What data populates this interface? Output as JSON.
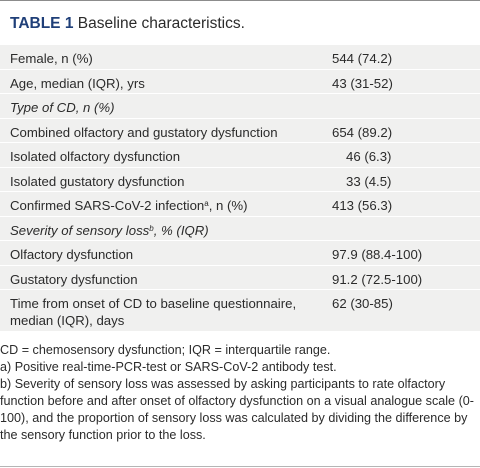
{
  "title": {
    "label": "TABLE 1",
    "text": " Baseline characteristics."
  },
  "rows": [
    {
      "label": "Female, n (%)",
      "value": "544 (74.2)"
    },
    {
      "label": "Age, median (IQR), yrs",
      "value": "43 (31-52)"
    },
    {
      "label": "Type of CD, n (%)",
      "value": ""
    },
    {
      "label": "Combined olfactory and gustatory dysfunction",
      "value": "654 (89.2)"
    },
    {
      "label": "Isolated olfactory dysfunction",
      "value": "46 (6.3)"
    },
    {
      "label": "Isolated gustatory dysfunction",
      "value": "33 (4.5)"
    },
    {
      "label_pre": "Confirmed SARS-CoV-2 infection",
      "label_sup": "a",
      "label_post": ", n (%)",
      "value": "413 (56.3)"
    },
    {
      "label_pre": "Severity of sensory loss",
      "label_sup": "b",
      "label_post": ", % (IQR)",
      "value": ""
    },
    {
      "label": "Olfactory dysfunction",
      "value": "97.9 (88.4-100)"
    },
    {
      "label": "Gustatory dysfunction",
      "value": "91.2 (72.5-100)"
    },
    {
      "label": "Time from onset of CD to baseline questionnaire, median (IQR), days",
      "value": "62 (30-85)"
    }
  ],
  "footnotes": {
    "abbrev": "CD = chemosensory dysfunction; IQR = interquartile range.",
    "a": "a) Positive real-time-PCR-test or SARS-CoV-2 antibody test.",
    "b": "b) Severity of sensory loss was assessed by asking participants to rate olfactory function before and after onset of olfactory dysfunction on a visual analogue scale (0-100), and the proportion of sensory loss was calculated by dividing the difference by the sensory function prior to the loss."
  }
}
